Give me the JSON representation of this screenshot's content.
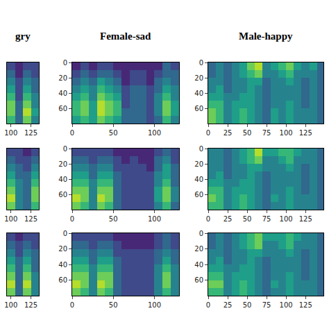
{
  "chart_data": [
    {
      "type": "heatmap",
      "title": "gry",
      "color": "viridis",
      "tick_labels": "x",
      "x": [
        100,
        110,
        120,
        130
      ],
      "y": [
        5,
        15,
        25,
        35,
        45,
        55,
        65,
        75
      ],
      "cells": [
        [
          2,
          1,
          2,
          2
        ],
        [
          3,
          1,
          3,
          2
        ],
        [
          4,
          2,
          4,
          3
        ],
        [
          5,
          2,
          5,
          3
        ],
        [
          6,
          2,
          6,
          4
        ],
        [
          7,
          3,
          7,
          4
        ],
        [
          7,
          3,
          8,
          5
        ],
        [
          6,
          3,
          7,
          4
        ]
      ],
      "xlim": [
        95,
        135
      ],
      "ylim": [
        80,
        0
      ],
      "xticks": [
        100,
        125
      ],
      "zlim": [
        0,
        9
      ]
    },
    {
      "type": "heatmap",
      "title": "Female-sad",
      "color": "viridis",
      "x": [
        5,
        15,
        25,
        35,
        45,
        55,
        65,
        75,
        85,
        95,
        105,
        115,
        125
      ],
      "y": [
        5,
        15,
        25,
        35,
        45,
        55,
        65,
        75
      ],
      "cells": [
        [
          1,
          2,
          1,
          2,
          2,
          1,
          1,
          1,
          1,
          1,
          1,
          3,
          2
        ],
        [
          2,
          3,
          2,
          3,
          3,
          2,
          1,
          2,
          2,
          1,
          2,
          3,
          3
        ],
        [
          3,
          4,
          3,
          5,
          4,
          3,
          1,
          2,
          2,
          1,
          3,
          4,
          3
        ],
        [
          4,
          5,
          4,
          6,
          5,
          4,
          2,
          3,
          3,
          2,
          3,
          5,
          4
        ],
        [
          5,
          6,
          4,
          7,
          6,
          5,
          2,
          3,
          3,
          2,
          4,
          6,
          4
        ],
        [
          6,
          7,
          5,
          8,
          7,
          6,
          2,
          3,
          3,
          2,
          4,
          7,
          5
        ],
        [
          6,
          7,
          5,
          8,
          7,
          6,
          3,
          3,
          3,
          2,
          4,
          7,
          5
        ],
        [
          5,
          6,
          5,
          7,
          6,
          5,
          3,
          3,
          3,
          2,
          3,
          6,
          4
        ]
      ],
      "xlim": [
        0,
        130
      ],
      "ylim": [
        80,
        0
      ],
      "xticks": [
        0,
        50,
        100
      ],
      "yticks": [
        0,
        20,
        40,
        60
      ],
      "zlim": [
        0,
        9
      ]
    },
    {
      "type": "heatmap",
      "title": "Male-happy",
      "color": "viridis",
      "x": [
        5,
        15,
        25,
        35,
        45,
        55,
        65,
        75,
        85,
        95,
        105,
        115,
        125,
        135,
        145
      ],
      "y": [
        5,
        15,
        25,
        35,
        45,
        55,
        65,
        75
      ],
      "cells": [
        [
          3,
          4,
          3,
          4,
          5,
          7,
          8,
          4,
          5,
          6,
          7,
          5,
          4,
          5,
          3
        ],
        [
          3,
          4,
          3,
          4,
          5,
          6,
          7,
          4,
          4,
          5,
          6,
          4,
          4,
          4,
          3
        ],
        [
          4,
          4,
          3,
          4,
          4,
          5,
          5,
          3,
          4,
          4,
          5,
          4,
          3,
          4,
          3
        ],
        [
          4,
          5,
          3,
          4,
          4,
          5,
          4,
          3,
          4,
          4,
          4,
          4,
          3,
          4,
          3
        ],
        [
          5,
          5,
          4,
          4,
          5,
          5,
          4,
          3,
          4,
          4,
          4,
          4,
          3,
          4,
          3
        ],
        [
          6,
          6,
          4,
          5,
          5,
          5,
          4,
          3,
          4,
          4,
          5,
          4,
          3,
          4,
          3
        ],
        [
          7,
          6,
          4,
          5,
          6,
          5,
          4,
          3,
          5,
          4,
          5,
          4,
          4,
          4,
          3
        ],
        [
          7,
          6,
          4,
          5,
          6,
          5,
          4,
          3,
          5,
          4,
          5,
          4,
          4,
          4,
          3
        ]
      ],
      "xlim": [
        0,
        148
      ],
      "ylim": [
        80,
        0
      ],
      "xticks": [
        0,
        25,
        50,
        75,
        100,
        125
      ],
      "yticks": [
        0,
        20,
        40,
        60
      ],
      "zlim": [
        0,
        9
      ]
    },
    {
      "type": "heatmap",
      "color": "viridis",
      "tick_labels": "x",
      "x": [
        100,
        110,
        120,
        130
      ],
      "y": [
        5,
        15,
        25,
        35,
        45,
        55,
        65,
        75
      ],
      "cells": [
        [
          2,
          2,
          1,
          2
        ],
        [
          3,
          2,
          2,
          3
        ],
        [
          4,
          3,
          2,
          4
        ],
        [
          5,
          3,
          3,
          5
        ],
        [
          6,
          4,
          3,
          6
        ],
        [
          7,
          4,
          3,
          7
        ],
        [
          8,
          4,
          3,
          7
        ],
        [
          7,
          4,
          3,
          6
        ]
      ],
      "xlim": [
        95,
        135
      ],
      "ylim": [
        80,
        0
      ],
      "xticks": [
        100,
        125
      ],
      "zlim": [
        0,
        9
      ]
    },
    {
      "type": "heatmap",
      "color": "viridis",
      "x": [
        5,
        15,
        25,
        35,
        45,
        55,
        65,
        75,
        85,
        95,
        105,
        115,
        125
      ],
      "y": [
        5,
        15,
        25,
        35,
        45,
        55,
        65,
        75
      ],
      "cells": [
        [
          2,
          2,
          2,
          2,
          2,
          1,
          1,
          1,
          1,
          1,
          2,
          3,
          2
        ],
        [
          3,
          3,
          2,
          3,
          3,
          2,
          1,
          2,
          1,
          1,
          3,
          4,
          2
        ],
        [
          4,
          4,
          3,
          4,
          4,
          2,
          2,
          2,
          2,
          1,
          3,
          5,
          3
        ],
        [
          5,
          5,
          3,
          5,
          5,
          3,
          2,
          2,
          2,
          2,
          4,
          5,
          3
        ],
        [
          6,
          6,
          4,
          6,
          6,
          3,
          2,
          2,
          2,
          2,
          4,
          6,
          3
        ],
        [
          7,
          7,
          4,
          7,
          7,
          3,
          2,
          2,
          2,
          2,
          5,
          7,
          4
        ],
        [
          8,
          7,
          4,
          8,
          7,
          3,
          2,
          2,
          2,
          2,
          5,
          7,
          4
        ],
        [
          7,
          6,
          4,
          7,
          6,
          3,
          2,
          2,
          2,
          2,
          4,
          6,
          3
        ]
      ],
      "xlim": [
        0,
        130
      ],
      "ylim": [
        80,
        0
      ],
      "xticks": [
        0,
        50,
        100
      ],
      "yticks": [
        0,
        20,
        40,
        60
      ],
      "zlim": [
        0,
        9
      ]
    },
    {
      "type": "heatmap",
      "color": "viridis",
      "x": [
        5,
        15,
        25,
        35,
        45,
        55,
        65,
        75,
        85,
        95,
        105,
        115,
        125,
        135,
        145
      ],
      "y": [
        5,
        15,
        25,
        35,
        45,
        55,
        65,
        75
      ],
      "cells": [
        [
          4,
          4,
          3,
          4,
          5,
          6,
          8,
          5,
          5,
          6,
          6,
          5,
          4,
          4,
          3
        ],
        [
          4,
          4,
          3,
          4,
          5,
          6,
          7,
          4,
          4,
          5,
          6,
          4,
          4,
          4,
          3
        ],
        [
          4,
          4,
          3,
          4,
          4,
          5,
          5,
          4,
          4,
          4,
          5,
          4,
          3,
          4,
          3
        ],
        [
          4,
          5,
          3,
          4,
          4,
          5,
          4,
          3,
          4,
          4,
          4,
          4,
          3,
          4,
          3
        ],
        [
          5,
          5,
          4,
          4,
          5,
          5,
          4,
          3,
          4,
          4,
          4,
          4,
          3,
          4,
          3
        ],
        [
          6,
          6,
          4,
          5,
          5,
          5,
          4,
          3,
          4,
          4,
          5,
          4,
          3,
          4,
          3
        ],
        [
          7,
          6,
          4,
          5,
          6,
          5,
          4,
          3,
          5,
          4,
          5,
          4,
          4,
          4,
          3
        ],
        [
          6,
          6,
          4,
          5,
          6,
          5,
          4,
          3,
          4,
          4,
          5,
          4,
          4,
          4,
          3
        ]
      ],
      "xlim": [
        0,
        148
      ],
      "ylim": [
        80,
        0
      ],
      "xticks": [
        0,
        25,
        50,
        75,
        100,
        125
      ],
      "yticks": [
        0,
        20,
        40,
        60
      ],
      "zlim": [
        0,
        9
      ]
    },
    {
      "type": "heatmap",
      "color": "viridis",
      "tick_labels": "x",
      "x": [
        100,
        110,
        120,
        130
      ],
      "y": [
        5,
        15,
        25,
        35,
        45,
        55,
        65,
        75
      ],
      "cells": [
        [
          2,
          1,
          2,
          2
        ],
        [
          3,
          2,
          3,
          2
        ],
        [
          4,
          2,
          4,
          3
        ],
        [
          5,
          3,
          5,
          3
        ],
        [
          6,
          3,
          6,
          3
        ],
        [
          7,
          3,
          7,
          4
        ],
        [
          8,
          3,
          8,
          4
        ],
        [
          7,
          3,
          7,
          4
        ]
      ],
      "xlim": [
        95,
        135
      ],
      "ylim": [
        80,
        0
      ],
      "xticks": [
        100,
        125
      ],
      "zlim": [
        0,
        9
      ]
    },
    {
      "type": "heatmap",
      "color": "viridis",
      "x": [
        5,
        15,
        25,
        35,
        45,
        55,
        65,
        75,
        85,
        95,
        105,
        115,
        125
      ],
      "y": [
        5,
        15,
        25,
        35,
        45,
        55,
        65,
        75
      ],
      "cells": [
        [
          2,
          2,
          2,
          2,
          2,
          1,
          1,
          1,
          1,
          1,
          2,
          3,
          2
        ],
        [
          3,
          3,
          2,
          3,
          3,
          2,
          1,
          1,
          1,
          1,
          2,
          3,
          2
        ],
        [
          4,
          4,
          3,
          4,
          4,
          2,
          2,
          2,
          2,
          2,
          3,
          4,
          3
        ],
        [
          5,
          5,
          3,
          5,
          5,
          3,
          2,
          2,
          2,
          2,
          3,
          5,
          3
        ],
        [
          6,
          6,
          4,
          6,
          6,
          3,
          2,
          2,
          2,
          2,
          4,
          6,
          4
        ],
        [
          7,
          7,
          4,
          7,
          7,
          3,
          2,
          2,
          2,
          2,
          4,
          7,
          4
        ],
        [
          8,
          7,
          4,
          8,
          7,
          3,
          2,
          2,
          2,
          2,
          4,
          7,
          4
        ],
        [
          7,
          6,
          4,
          7,
          6,
          3,
          2,
          2,
          2,
          2,
          4,
          6,
          4
        ]
      ],
      "xlim": [
        0,
        130
      ],
      "ylim": [
        80,
        0
      ],
      "xticks": [
        0,
        50,
        100
      ],
      "yticks": [
        0,
        20,
        40,
        60
      ],
      "zlim": [
        0,
        9
      ]
    },
    {
      "type": "heatmap",
      "color": "viridis",
      "x": [
        5,
        15,
        25,
        35,
        45,
        55,
        65,
        75,
        85,
        95,
        105,
        115,
        125,
        135,
        145
      ],
      "y": [
        5,
        15,
        25,
        35,
        45,
        55,
        65,
        75
      ],
      "cells": [
        [
          3,
          4,
          3,
          4,
          5,
          6,
          7,
          5,
          5,
          5,
          6,
          5,
          4,
          4,
          3
        ],
        [
          3,
          4,
          3,
          4,
          5,
          6,
          7,
          4,
          4,
          5,
          6,
          4,
          4,
          4,
          3
        ],
        [
          4,
          4,
          3,
          4,
          4,
          5,
          5,
          4,
          4,
          4,
          5,
          4,
          3,
          4,
          3
        ],
        [
          4,
          5,
          3,
          4,
          4,
          5,
          4,
          3,
          4,
          4,
          4,
          4,
          3,
          4,
          3
        ],
        [
          5,
          5,
          4,
          4,
          5,
          5,
          4,
          3,
          4,
          4,
          4,
          4,
          3,
          4,
          3
        ],
        [
          6,
          6,
          4,
          5,
          5,
          5,
          4,
          3,
          4,
          4,
          5,
          4,
          3,
          4,
          3
        ],
        [
          7,
          7,
          4,
          5,
          6,
          5,
          4,
          3,
          5,
          4,
          5,
          4,
          4,
          4,
          3
        ],
        [
          6,
          6,
          4,
          5,
          6,
          5,
          4,
          3,
          4,
          4,
          5,
          4,
          4,
          4,
          3
        ]
      ],
      "xlim": [
        0,
        148
      ],
      "ylim": [
        80,
        0
      ],
      "xticks": [
        0,
        25,
        50,
        75,
        100,
        125
      ],
      "yticks": [
        0,
        20,
        40,
        60
      ],
      "zlim": [
        0,
        9
      ]
    }
  ]
}
